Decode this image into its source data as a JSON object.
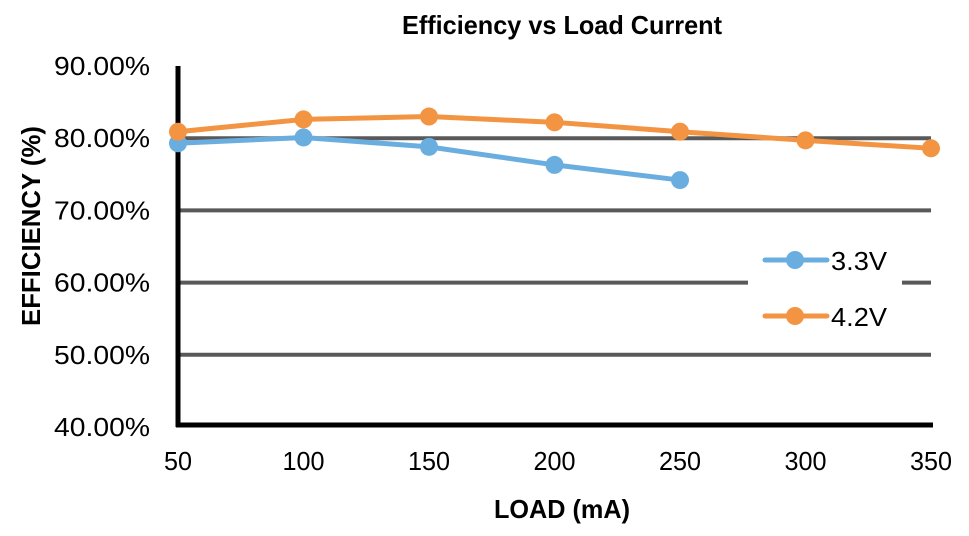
{
  "chart_data": {
    "type": "line",
    "title": "Efficiency vs Load Current",
    "xlabel": "LOAD (mA)",
    "ylabel": "EFFICIENCY (%)",
    "x": [
      50,
      100,
      150,
      200,
      250,
      300,
      350
    ],
    "x_tick_labels": [
      "50",
      "100",
      "150",
      "200",
      "250",
      "300",
      "350"
    ],
    "y_tick_values": [
      40,
      50,
      60,
      70,
      80,
      90
    ],
    "y_tick_labels": [
      "40.00%",
      "50.00%",
      "60.00%",
      "70.00%",
      "80.00%",
      "90.00%"
    ],
    "ylim": [
      40,
      90
    ],
    "xlim": [
      50,
      350
    ],
    "grid": true,
    "legend_position": "right",
    "series": [
      {
        "name": "3.3V",
        "color": "#6aaee0",
        "x": [
          50,
          100,
          150,
          200,
          250
        ],
        "values": [
          79.3,
          80.1,
          78.8,
          76.3,
          74.2
        ]
      },
      {
        "name": "4.2V",
        "color": "#f39442",
        "x": [
          50,
          100,
          150,
          200,
          250,
          300,
          350
        ],
        "values": [
          80.9,
          82.6,
          83.0,
          82.2,
          80.9,
          79.7,
          78.6
        ]
      }
    ]
  }
}
